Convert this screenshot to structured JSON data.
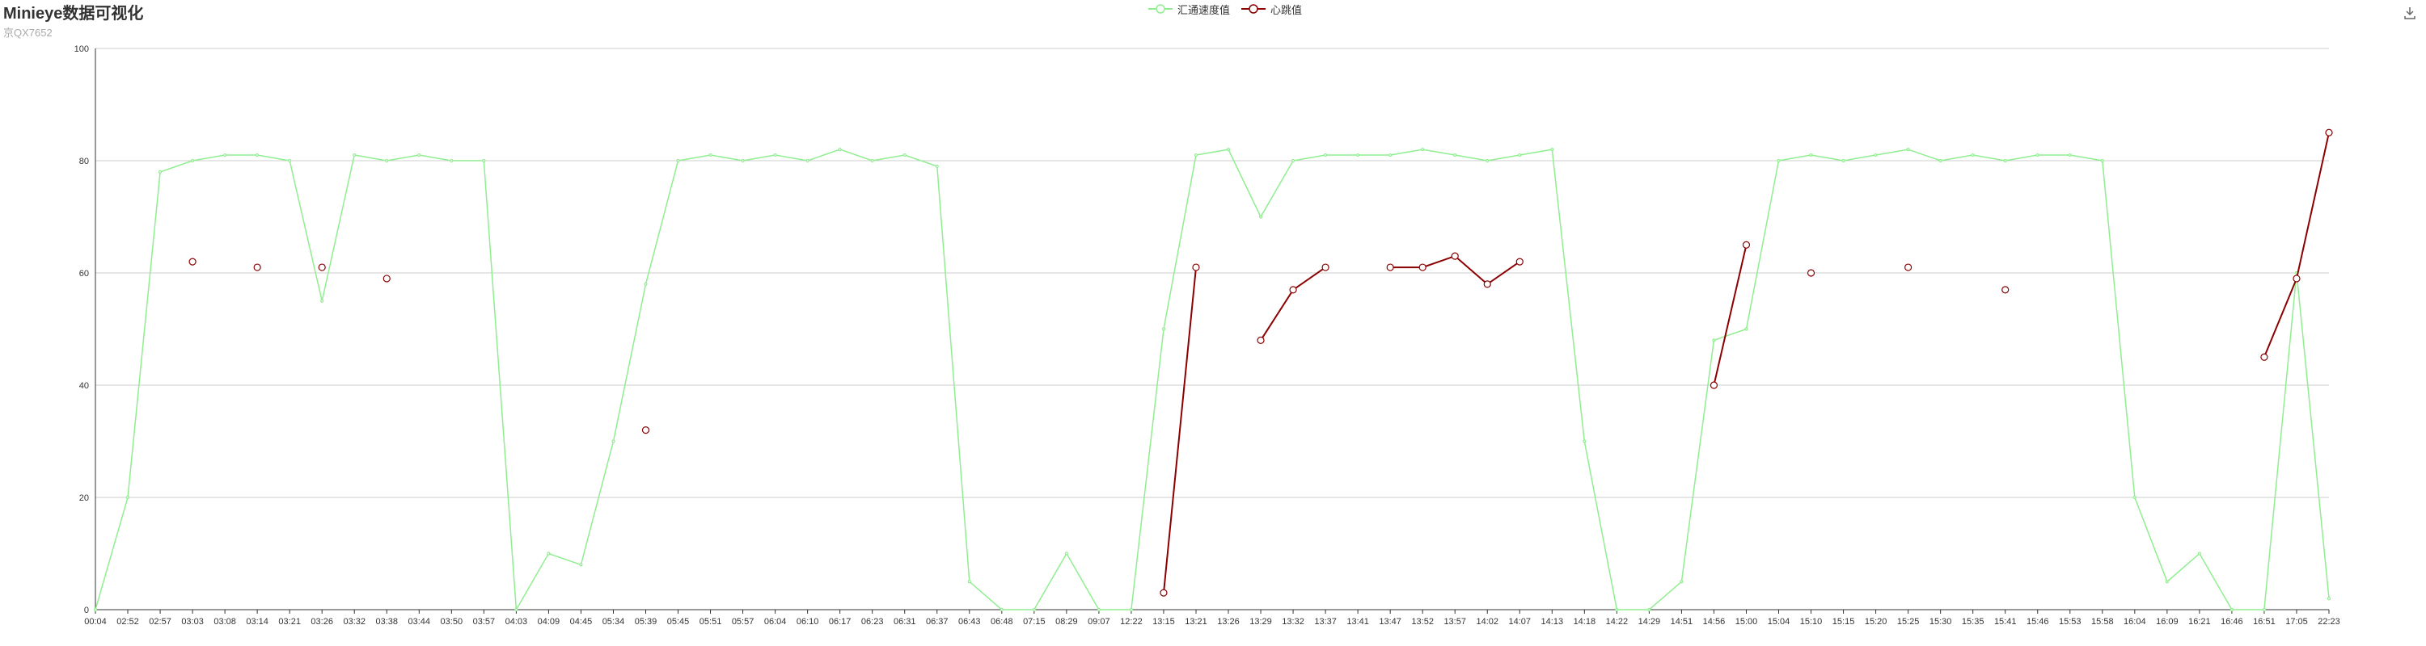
{
  "chart_data": {
    "type": "line",
    "title": "Minieye数据可视化",
    "subtitle": "京QX7652",
    "ylim": [
      0,
      100
    ],
    "yticks": [
      0,
      20,
      40,
      60,
      80,
      100
    ],
    "grid": true,
    "legend_position": "top-center",
    "categories": [
      "00:04",
      "02:52",
      "02:57",
      "03:03",
      "03:08",
      "03:14",
      "03:21",
      "03:26",
      "03:32",
      "03:38",
      "03:44",
      "03:50",
      "03:57",
      "04:03",
      "04:09",
      "04:45",
      "05:34",
      "05:39",
      "05:45",
      "05:51",
      "05:57",
      "06:04",
      "06:10",
      "06:17",
      "06:23",
      "06:31",
      "06:37",
      "06:43",
      "06:48",
      "07:15",
      "08:29",
      "09:07",
      "12:22",
      "13:15",
      "13:21",
      "13:26",
      "13:29",
      "13:32",
      "13:37",
      "13:41",
      "13:47",
      "13:52",
      "13:57",
      "14:02",
      "14:07",
      "14:13",
      "14:18",
      "14:22",
      "14:29",
      "14:51",
      "14:56",
      "15:00",
      "15:04",
      "15:10",
      "15:15",
      "15:20",
      "15:25",
      "15:30",
      "15:35",
      "15:41",
      "15:46",
      "15:53",
      "15:58",
      "16:04",
      "16:09",
      "16:21",
      "16:46",
      "16:51",
      "17:05",
      "22:23"
    ],
    "series": [
      {
        "name": "汇通速度值",
        "color": "#90ee90",
        "values": [
          0,
          20,
          78,
          80,
          81,
          81,
          80,
          55,
          81,
          80,
          81,
          80,
          80,
          0,
          10,
          8,
          30,
          58,
          80,
          81,
          80,
          81,
          80,
          82,
          80,
          81,
          79,
          5,
          0,
          0,
          10,
          0,
          0,
          50,
          81,
          82,
          70,
          80,
          81,
          81,
          81,
          82,
          81,
          80,
          81,
          82,
          30,
          0,
          0,
          5,
          48,
          50,
          80,
          81,
          80,
          81,
          82,
          80,
          81,
          80,
          81,
          81,
          80,
          20,
          5,
          10,
          0,
          0,
          60,
          2
        ]
      },
      {
        "name": "心跳值",
        "color": "#8b0000",
        "values": [
          null,
          null,
          null,
          62,
          null,
          61,
          null,
          61,
          null,
          59,
          null,
          null,
          null,
          null,
          null,
          null,
          null,
          32,
          null,
          null,
          null,
          null,
          null,
          null,
          null,
          null,
          null,
          null,
          null,
          null,
          null,
          null,
          null,
          3,
          61,
          null,
          48,
          57,
          61,
          null,
          61,
          61,
          63,
          58,
          62,
          null,
          null,
          null,
          null,
          null,
          40,
          65,
          null,
          60,
          null,
          null,
          61,
          null,
          null,
          57,
          null,
          null,
          null,
          null,
          null,
          null,
          null,
          45,
          59,
          85
        ]
      }
    ]
  },
  "colors": {
    "axis": "#333333",
    "grid": "#cccccc"
  },
  "toolbox_icon": "download-icon"
}
